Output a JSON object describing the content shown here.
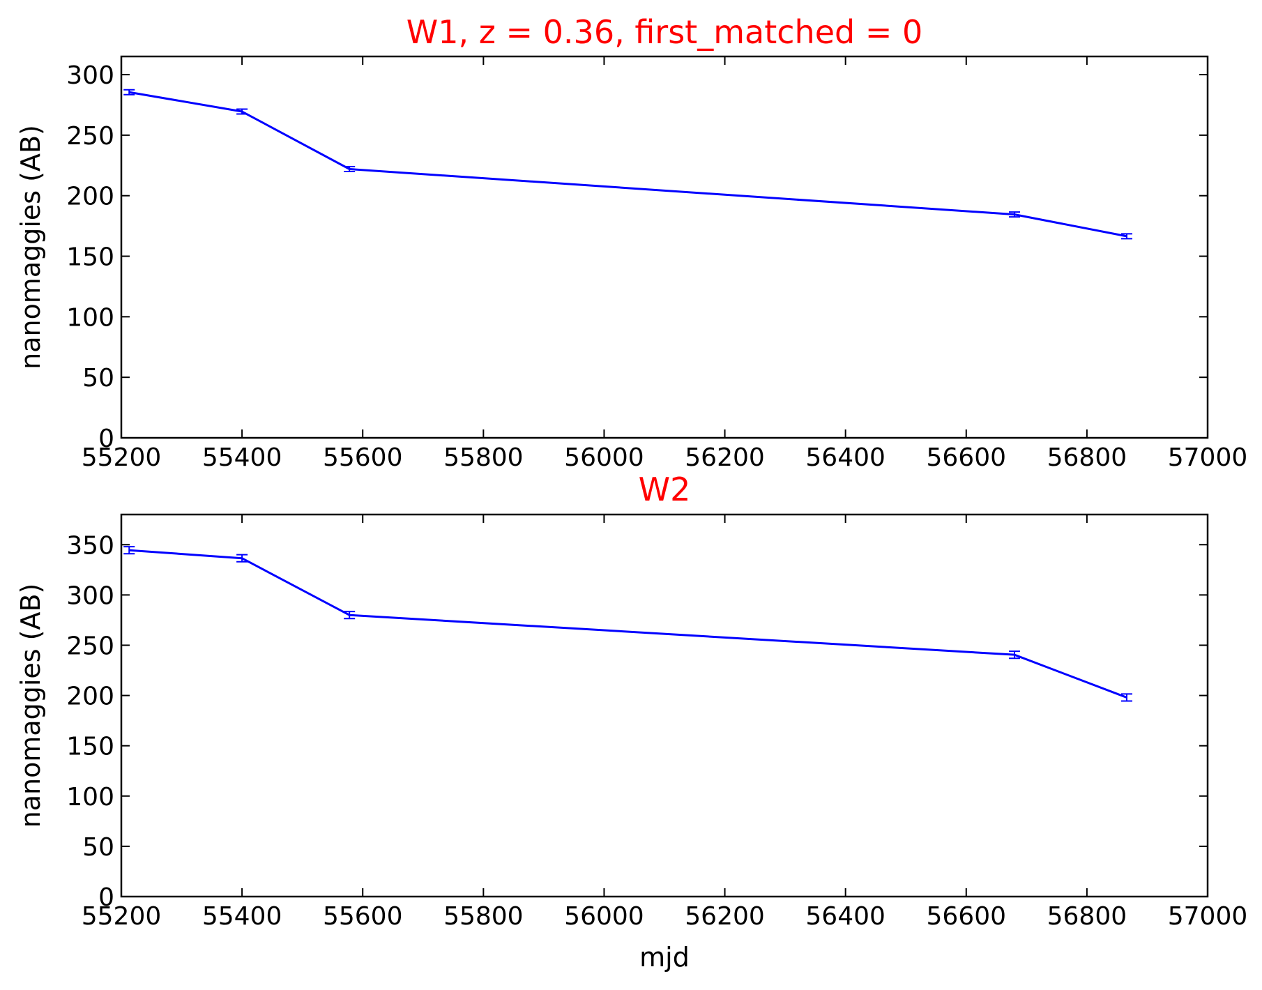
{
  "chart_data": [
    {
      "type": "line",
      "title": "W1, z = 0.36, first_matched = 0",
      "title_color": "#ff0000",
      "xlabel": "",
      "ylabel": "nanomaggies (AB)",
      "xlim": [
        55200,
        57000
      ],
      "ylim": [
        0,
        315
      ],
      "xticks": [
        55200,
        55400,
        55600,
        55800,
        56000,
        56200,
        56400,
        56600,
        56800,
        57000
      ],
      "yticks": [
        0,
        50,
        100,
        150,
        200,
        250,
        300
      ],
      "grid": false,
      "series": [
        {
          "color": "#0000ff",
          "x": [
            55213,
            55400,
            55578,
            56680,
            56866
          ],
          "y": [
            285.5,
            269.5,
            222,
            184.5,
            166.5
          ],
          "yerr": [
            2,
            2,
            2,
            2,
            2
          ]
        }
      ]
    },
    {
      "type": "line",
      "title": "W2",
      "title_color": "#ff0000",
      "xlabel": "mjd",
      "ylabel": "nanomaggies (AB)",
      "xlim": [
        55200,
        57000
      ],
      "ylim": [
        0,
        380
      ],
      "xticks": [
        55200,
        55400,
        55600,
        55800,
        56000,
        56200,
        56400,
        56600,
        56800,
        57000
      ],
      "yticks": [
        0,
        50,
        100,
        150,
        200,
        250,
        300,
        350
      ],
      "grid": false,
      "series": [
        {
          "color": "#0000ff",
          "x": [
            55213,
            55400,
            55578,
            56680,
            56866
          ],
          "y": [
            344.5,
            336.5,
            280,
            240.5,
            198
          ],
          "yerr": [
            3.5,
            3.5,
            3.5,
            3.5,
            3.5
          ]
        }
      ]
    }
  ]
}
